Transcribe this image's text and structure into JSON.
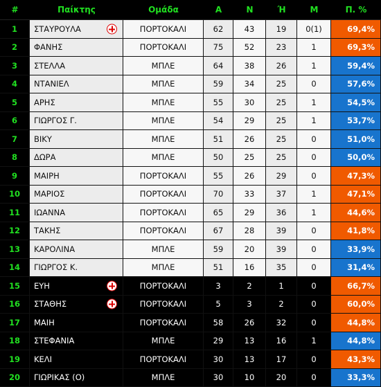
{
  "header": [
    "#",
    "Παίκτης",
    "Ομάδα",
    "Α",
    "Ν",
    "Ή",
    "Μ",
    "Π. %"
  ],
  "colors": {
    "orange": "#f05a00",
    "blue": "#1874cd",
    "accent": "#21e021"
  },
  "rows": [
    {
      "rank": "1",
      "name": "ΣΤΑΥΡΟΥΛΑ",
      "icon": true,
      "team": "ΠΟΡΤΟΚΑΛΙ",
      "a": "62",
      "n": "43",
      "h": "19",
      "m": "0(1)",
      "pct": "69,4%",
      "color": "orange",
      "dark": false
    },
    {
      "rank": "2",
      "name": "ΦΑΝΗΣ",
      "icon": false,
      "team": "ΠΟΡΤΟΚΑΛΙ",
      "a": "75",
      "n": "52",
      "h": "23",
      "m": "1",
      "pct": "69,3%",
      "color": "orange",
      "dark": false
    },
    {
      "rank": "3",
      "name": "ΣΤΕΛΛΑ",
      "icon": false,
      "team": "ΜΠΛΕ",
      "a": "64",
      "n": "38",
      "h": "26",
      "m": "1",
      "pct": "59,4%",
      "color": "blue",
      "dark": false
    },
    {
      "rank": "4",
      "name": "ΝΤΑΝΙΕΛ",
      "icon": false,
      "team": "ΜΠΛΕ",
      "a": "59",
      "n": "34",
      "h": "25",
      "m": "0",
      "pct": "57,6%",
      "color": "blue",
      "dark": false
    },
    {
      "rank": "5",
      "name": "ΑΡΗΣ",
      "icon": false,
      "team": "ΜΠΛΕ",
      "a": "55",
      "n": "30",
      "h": "25",
      "m": "1",
      "pct": "54,5%",
      "color": "blue",
      "dark": false
    },
    {
      "rank": "6",
      "name": "ΓΙΩΡΓΟΣ Γ.",
      "icon": false,
      "team": "ΜΠΛΕ",
      "a": "54",
      "n": "29",
      "h": "25",
      "m": "1",
      "pct": "53,7%",
      "color": "blue",
      "dark": false
    },
    {
      "rank": "7",
      "name": "ΒΙΚΥ",
      "icon": false,
      "team": "ΜΠΛΕ",
      "a": "51",
      "n": "26",
      "h": "25",
      "m": "0",
      "pct": "51,0%",
      "color": "blue",
      "dark": false
    },
    {
      "rank": "8",
      "name": "ΔΩΡΑ",
      "icon": false,
      "team": "ΜΠΛΕ",
      "a": "50",
      "n": "25",
      "h": "25",
      "m": "0",
      "pct": "50,0%",
      "color": "blue",
      "dark": false
    },
    {
      "rank": "9",
      "name": "ΜΑΙΡΗ",
      "icon": false,
      "team": "ΠΟΡΤΟΚΑΛΙ",
      "a": "55",
      "n": "26",
      "h": "29",
      "m": "0",
      "pct": "47,3%",
      "color": "orange",
      "dark": false
    },
    {
      "rank": "10",
      "name": "ΜΑΡΙΟΣ",
      "icon": false,
      "team": "ΠΟΡΤΟΚΑΛΙ",
      "a": "70",
      "n": "33",
      "h": "37",
      "m": "1",
      "pct": "47,1%",
      "color": "orange",
      "dark": false
    },
    {
      "rank": "11",
      "name": "ΙΩΑΝΝΑ",
      "icon": false,
      "team": "ΠΟΡΤΟΚΑΛΙ",
      "a": "65",
      "n": "29",
      "h": "36",
      "m": "1",
      "pct": "44,6%",
      "color": "orange",
      "dark": false
    },
    {
      "rank": "12",
      "name": "ΤΑΚΗΣ",
      "icon": false,
      "team": "ΠΟΡΤΟΚΑΛΙ",
      "a": "67",
      "n": "28",
      "h": "39",
      "m": "0",
      "pct": "41,8%",
      "color": "orange",
      "dark": false
    },
    {
      "rank": "13",
      "name": "ΚΑΡΟΛΙΝΑ",
      "icon": false,
      "team": "ΜΠΛΕ",
      "a": "59",
      "n": "20",
      "h": "39",
      "m": "0",
      "pct": "33,9%",
      "color": "blue",
      "dark": false
    },
    {
      "rank": "14",
      "name": "ΓΙΩΡΓΟΣ Κ.",
      "icon": false,
      "team": "ΜΠΛΕ",
      "a": "51",
      "n": "16",
      "h": "35",
      "m": "0",
      "pct": "31,4%",
      "color": "blue",
      "dark": false
    },
    {
      "rank": "15",
      "name": "ΕΥΗ",
      "icon": true,
      "team": "ΠΟΡΤΟΚΑΛΙ",
      "a": "3",
      "n": "2",
      "h": "1",
      "m": "0",
      "pct": "66,7%",
      "color": "orange",
      "dark": true
    },
    {
      "rank": "16",
      "name": "ΣΤΑΘΗΣ",
      "icon": true,
      "team": "ΠΟΡΤΟΚΑΛΙ",
      "a": "5",
      "n": "3",
      "h": "2",
      "m": "0",
      "pct": "60,0%",
      "color": "orange",
      "dark": true
    },
    {
      "rank": "17",
      "name": "ΜΑΙΗ",
      "icon": false,
      "team": "ΠΟΡΤΟΚΑΛΙ",
      "a": "58",
      "n": "26",
      "h": "32",
      "m": "0",
      "pct": "44,8%",
      "color": "orange",
      "dark": true
    },
    {
      "rank": "18",
      "name": "ΣΤΕΦΑΝΙΑ",
      "icon": false,
      "team": "ΜΠΛΕ",
      "a": "29",
      "n": "13",
      "h": "16",
      "m": "1",
      "pct": "44,8%",
      "color": "blue",
      "dark": true
    },
    {
      "rank": "19",
      "name": "ΚΕΛΙ",
      "icon": false,
      "team": "ΠΟΡΤΟΚΑΛΙ",
      "a": "30",
      "n": "13",
      "h": "17",
      "m": "0",
      "pct": "43,3%",
      "color": "orange",
      "dark": true
    },
    {
      "rank": "20",
      "name": "ΓΙΩΡΙΚΑΣ (Ο)",
      "icon": false,
      "team": "ΜΠΛΕ",
      "a": "30",
      "n": "10",
      "h": "20",
      "m": "0",
      "pct": "33,3%",
      "color": "blue",
      "dark": true
    }
  ]
}
